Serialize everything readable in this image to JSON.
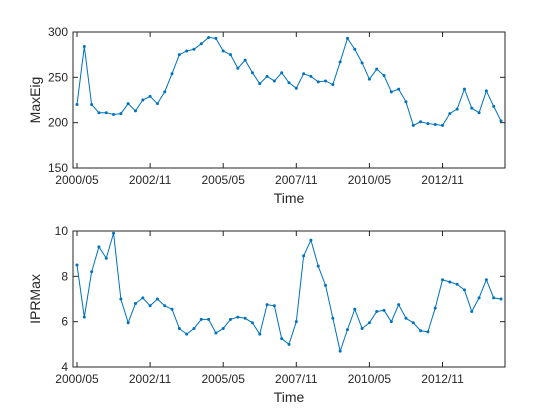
{
  "colors": {
    "line": "#0072BD",
    "axis": "#262626",
    "background": "#ffffff"
  },
  "chart_data": [
    {
      "type": "line",
      "xlabel": "Time",
      "ylabel": "MaxEig",
      "ylim": [
        150,
        300
      ],
      "yticks": [
        150,
        200,
        250,
        300
      ],
      "x_tick_labels": [
        "2000/05",
        "2002/11",
        "2005/05",
        "2007/11",
        "2010/05",
        "2012/11"
      ],
      "x_tick_index": [
        0,
        10,
        20,
        30,
        40,
        50
      ],
      "grid": false,
      "series": [
        {
          "values": [
            220,
            284,
            220,
            211,
            211,
            209,
            210,
            221,
            213,
            225,
            229,
            221,
            234,
            254,
            275,
            279,
            281,
            287,
            294,
            293,
            279,
            275,
            260,
            269,
            255,
            243,
            251,
            246,
            255,
            244,
            238,
            254,
            251,
            245,
            246,
            242,
            267,
            293,
            281,
            266,
            248,
            259,
            252,
            234,
            237,
            223,
            197,
            201,
            199,
            198,
            197,
            210,
            215,
            237,
            216,
            211,
            235,
            218,
            202
          ]
        }
      ]
    },
    {
      "type": "line",
      "xlabel": "Time",
      "ylabel": "IPRMax",
      "ylim": [
        4,
        10
      ],
      "yticks": [
        4,
        6,
        8,
        10
      ],
      "x_tick_labels": [
        "2000/05",
        "2002/11",
        "2005/05",
        "2007/11",
        "2010/05",
        "2012/11"
      ],
      "x_tick_index": [
        0,
        10,
        20,
        30,
        40,
        50
      ],
      "grid": false,
      "series": [
        {
          "values": [
            8.5,
            6.2,
            8.2,
            9.3,
            8.8,
            9.9,
            7.0,
            5.95,
            6.8,
            7.05,
            6.7,
            7.0,
            6.7,
            6.55,
            5.7,
            5.45,
            5.7,
            6.1,
            6.1,
            5.5,
            5.7,
            6.1,
            6.2,
            6.15,
            5.95,
            5.45,
            6.75,
            6.7,
            5.25,
            5.0,
            6.0,
            8.9,
            9.6,
            8.45,
            7.6,
            6.15,
            4.7,
            5.65,
            6.55,
            5.7,
            5.95,
            6.45,
            6.5,
            6.0,
            6.75,
            6.15,
            5.95,
            5.6,
            5.55,
            6.6,
            7.85,
            7.75,
            7.65,
            7.4,
            6.45,
            7.05,
            7.85,
            7.05,
            7.0
          ]
        }
      ]
    }
  ]
}
